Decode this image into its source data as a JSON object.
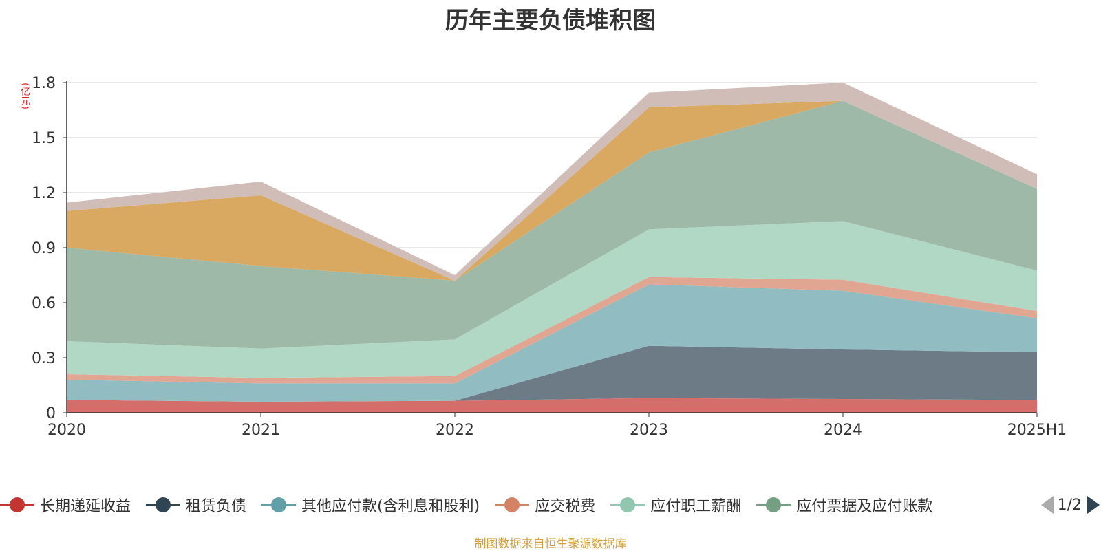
{
  "chart_data": {
    "type": "area",
    "stacked": true,
    "title": "历年主要负债堆积图",
    "unit_label": "(亿元)",
    "categories": [
      "2020",
      "2021",
      "2022",
      "2023",
      "2024",
      "2025H1"
    ],
    "ylim": [
      0,
      1.8
    ],
    "yticks": [
      0,
      0.3,
      0.6,
      0.9,
      1.2,
      1.5,
      1.8
    ],
    "ytick_labels": [
      "0",
      "0.3",
      "0.6",
      "0.9",
      "1.2",
      "1.5",
      "1.8"
    ],
    "grid": true,
    "legend_position": "bottom",
    "series": [
      {
        "name": "长期递延收益",
        "values": [
          0.07,
          0.06,
          0.065,
          0.08,
          0.075,
          0.07
        ],
        "color": "#c23531",
        "fill": "#d46e6b"
      },
      {
        "name": "租赁负债",
        "values": [
          0.0,
          0.0,
          0.0,
          0.285,
          0.27,
          0.26
        ],
        "color": "#2f4554",
        "fill": "#6d7b86"
      },
      {
        "name": "其他应付款(含利息和股利)",
        "values": [
          0.11,
          0.1,
          0.095,
          0.335,
          0.32,
          0.185
        ],
        "color": "#61a0a8",
        "fill": "#91bcc1"
      },
      {
        "name": "应交税费",
        "values": [
          0.03,
          0.03,
          0.04,
          0.04,
          0.06,
          0.04
        ],
        "color": "#d48265",
        "fill": "#e0a691"
      },
      {
        "name": "应付职工薪酬",
        "values": [
          0.18,
          0.16,
          0.2,
          0.26,
          0.32,
          0.22
        ],
        "color": "#91c7ae",
        "fill": "#b1d7c5"
      },
      {
        "name": "应付票据及应付账款",
        "values": [
          0.51,
          0.45,
          0.32,
          0.42,
          0.655,
          0.445
        ],
        "color": "#749f83",
        "fill": "#9eb9a7"
      },
      {
        "name": "",
        "values": [
          0.2,
          0.385,
          0.0,
          0.245,
          0.0,
          0.0
        ],
        "color": "#ca8622",
        "fill": "#d9a962"
      },
      {
        "name": "",
        "values": [
          0.045,
          0.075,
          0.03,
          0.08,
          0.1,
          0.08
        ],
        "color": "#bda29a",
        "fill": "#d0bdb8"
      }
    ]
  },
  "legend": {
    "pager_text": "1/2"
  },
  "source_note": "制图数据来自恒生聚源数据库"
}
